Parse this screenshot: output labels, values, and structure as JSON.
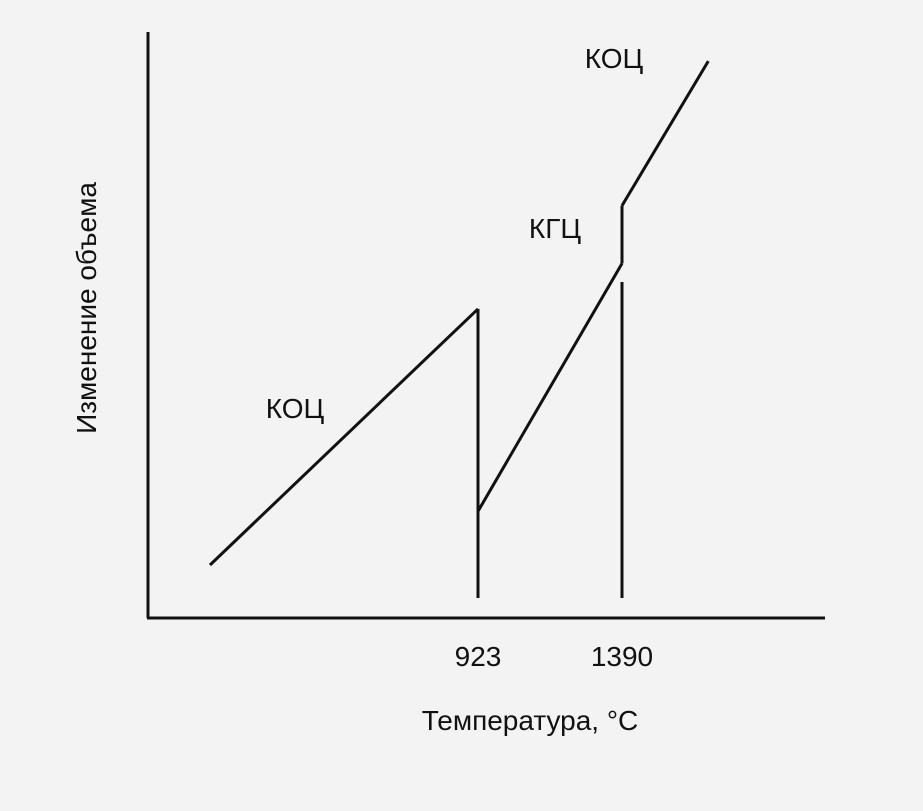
{
  "chart_data": {
    "type": "line",
    "title": "",
    "xlabel": "Температура, °C",
    "ylabel": "Изменение объема",
    "xticks": [
      "923",
      "1390"
    ],
    "grid": false,
    "legend": "none",
    "segments": [
      {
        "label": "КОЦ",
        "points": [
          [
            0.0,
            0.0
          ],
          [
            923,
            0.62
          ]
        ]
      },
      {
        "label": "",
        "points": [
          [
            923,
            0.62
          ],
          [
            923,
            0.13
          ]
        ]
      },
      {
        "label": "КГЦ",
        "points": [
          [
            923,
            0.13
          ],
          [
            1390,
            0.73
          ]
        ]
      },
      {
        "label": "",
        "points": [
          [
            1390,
            0.73
          ],
          [
            1390,
            0.87
          ]
        ]
      },
      {
        "label": "КОЦ",
        "points": [
          [
            1390,
            0.87
          ],
          [
            1670,
            1.22
          ]
        ]
      }
    ],
    "markers": [
      923,
      1390
    ],
    "colors": {
      "line": "#111111",
      "background": "#f3f3f3"
    }
  }
}
